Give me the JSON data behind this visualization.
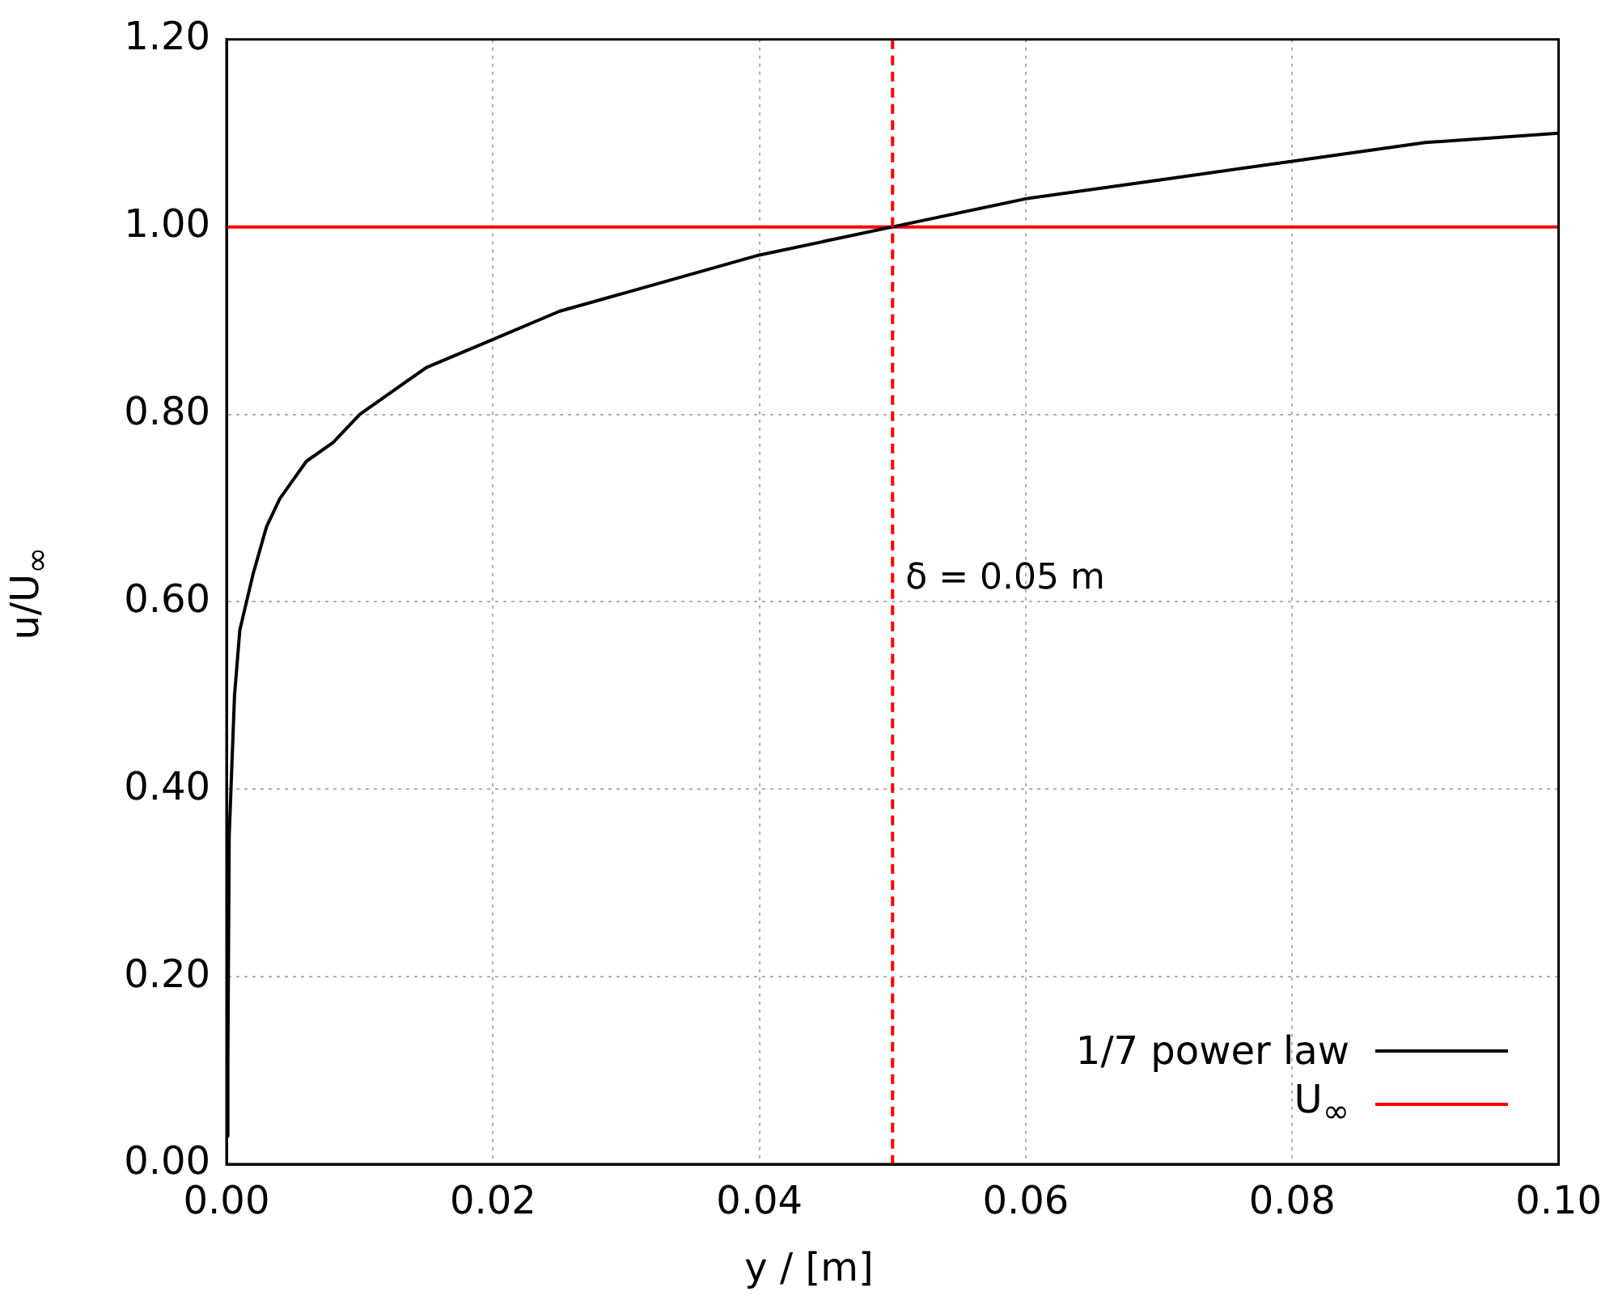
{
  "chart_data": {
    "type": "line",
    "xlabel": "y / [m]",
    "ylabel": "u/U$_{∞}$",
    "xlim": [
      0,
      0.1
    ],
    "ylim": [
      0,
      1.2
    ],
    "xticks": [
      {
        "value": 0,
        "label": "0.00"
      },
      {
        "value": 0.02,
        "label": "0.02"
      },
      {
        "value": 0.04,
        "label": "0.04"
      },
      {
        "value": 0.06,
        "label": "0.06"
      },
      {
        "value": 0.08,
        "label": "0.08"
      },
      {
        "value": 0.1,
        "label": "0.10"
      }
    ],
    "yticks": [
      {
        "value": 0,
        "label": "0.00"
      },
      {
        "value": 0.2,
        "label": "0.20"
      },
      {
        "value": 0.4,
        "label": "0.40"
      },
      {
        "value": 0.6,
        "label": "0.60"
      },
      {
        "value": 0.8,
        "label": "0.80"
      },
      {
        "value": 1,
        "label": "1.00"
      },
      {
        "value": 1.2,
        "label": "1.20"
      }
    ],
    "grid": true,
    "legend": "bottom right",
    "marker": "none",
    "line_style": "solid",
    "series": [
      {
        "name": "1/7 power law",
        "color": "#000000",
        "x": [
          2e-05,
          0.0001,
          0.0002,
          0.0006,
          0.001,
          0.002,
          0.003,
          0.004,
          0.005,
          0.006,
          0.008,
          0.01,
          0.012,
          0.015,
          0.02,
          0.025,
          0.03,
          0.035,
          0.04,
          0.045,
          0.05,
          0.06,
          0.07,
          0.08,
          0.09,
          0.1
        ],
        "values": [
          0.03,
          0.11,
          0.35,
          0.5,
          0.57,
          0.63,
          0.68,
          0.71,
          0.73,
          0.75,
          0.77,
          0.8,
          0.82,
          0.85,
          0.88,
          0.91,
          0.93,
          0.95,
          0.97,
          0.985,
          1.0,
          1.03,
          1.05,
          1.07,
          1.09,
          1.1
        ]
      },
      {
        "name": "U$_{∞}$",
        "color": "#ff0000",
        "x": [
          0,
          0.1
        ],
        "values": [
          1,
          1
        ]
      }
    ],
    "ref_lines": [
      {
        "axis": "x",
        "value": 0.05,
        "label": "δ = 0.05 m",
        "color": "#ff0000",
        "line_style": "dashed"
      }
    ]
  }
}
